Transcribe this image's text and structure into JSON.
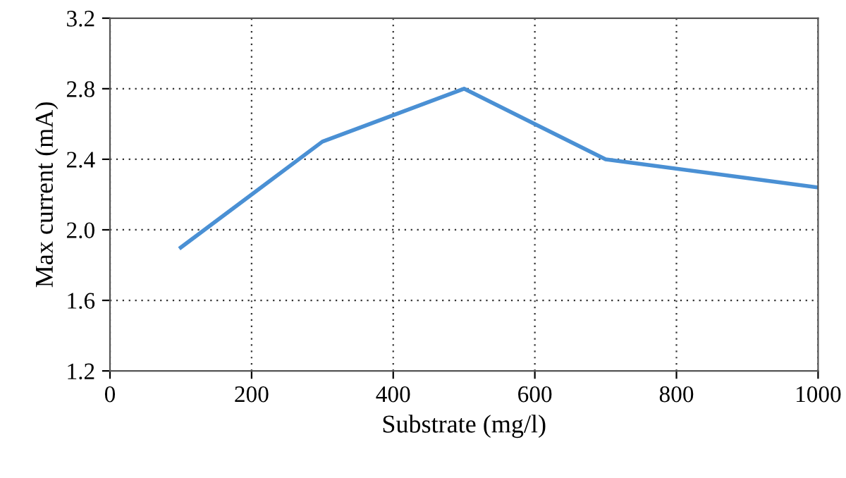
{
  "chart_data": {
    "type": "line",
    "xlabel": "Substrate (mg/l)",
    "ylabel": "Max current (mA)",
    "x": [
      100,
      300,
      500,
      700,
      1000
    ],
    "series": [
      {
        "color": "#4a90d4",
        "values": [
          1.9,
          2.5,
          2.8,
          2.4,
          2.24
        ]
      }
    ],
    "xlim": [
      0,
      1000
    ],
    "xticks": [
      0,
      200,
      400,
      600,
      800,
      1000
    ],
    "ylim": [
      1.2,
      3.2
    ],
    "yticks": [
      {
        "value": 1.2,
        "label": "1.2"
      },
      {
        "value": 1.6,
        "label": "1.6"
      },
      {
        "value": 2.0,
        "label": "2.0"
      },
      {
        "value": 2.4,
        "label": "2.4"
      },
      {
        "value": 2.8,
        "label": "2.8"
      },
      {
        "value": 3.2,
        "label": "3.2"
      }
    ],
    "grid": true,
    "marker": "none",
    "line_style": "solid"
  }
}
